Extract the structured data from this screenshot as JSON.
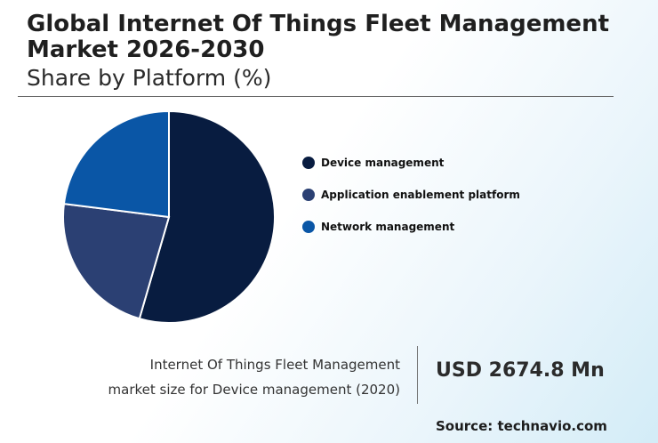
{
  "header": {
    "title": "Global Internet Of Things Fleet Management Market 2026-2030",
    "subtitle": "Share by Platform (%)"
  },
  "chart_data": {
    "type": "pie",
    "title": "Share by Platform (%)",
    "series": [
      {
        "name": "Device management",
        "value": 54.5,
        "color": "#081c40"
      },
      {
        "name": "Application enablement platform",
        "value": 22.5,
        "color": "#2b4073"
      },
      {
        "name": "Network management",
        "value": 23.0,
        "color": "#0a56a6"
      }
    ],
    "legend_position": "right"
  },
  "stat": {
    "label_line1": "Internet Of Things Fleet Management",
    "label_line2": "market size for Device management (2020)",
    "value": "USD 2674.8 Mn"
  },
  "footer": {
    "source": "Source: technavio.com"
  }
}
